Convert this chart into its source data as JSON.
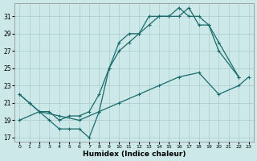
{
  "xlabel": "Humidex (Indice chaleur)",
  "bg_color": "#cce8e8",
  "grid_color": "#aacccc",
  "line_color": "#1a6b6b",
  "xlim": [
    -0.5,
    23.5
  ],
  "ylim": [
    16.5,
    32.5
  ],
  "xticks": [
    0,
    1,
    2,
    3,
    4,
    5,
    6,
    7,
    8,
    9,
    10,
    11,
    12,
    13,
    14,
    15,
    16,
    17,
    18,
    19,
    20,
    21,
    22,
    23
  ],
  "yticks": [
    17,
    19,
    21,
    23,
    25,
    27,
    29,
    31
  ],
  "line1_x": [
    0,
    1,
    2,
    3,
    4,
    5,
    6,
    7,
    8,
    9,
    10,
    11,
    12,
    13,
    14,
    15,
    16,
    17,
    18,
    19,
    20,
    22
  ],
  "line1_y": [
    22,
    21,
    20,
    19,
    18,
    18,
    18,
    17,
    20,
    25,
    28,
    29,
    29,
    31,
    31,
    31,
    32,
    31,
    31,
    30,
    27,
    24
  ],
  "line2_x": [
    0,
    1,
    2,
    3,
    4,
    5,
    6,
    7,
    8,
    9,
    10,
    11,
    12,
    13,
    14,
    15,
    16,
    17,
    18,
    19,
    20,
    22
  ],
  "line2_y": [
    22,
    21,
    20,
    20,
    19,
    19.5,
    19.5,
    20,
    22,
    25,
    27,
    28,
    29,
    30,
    31,
    31,
    31,
    32,
    30,
    30,
    28,
    24
  ],
  "line3_x": [
    0,
    2,
    4,
    6,
    8,
    10,
    12,
    14,
    16,
    18,
    20,
    22,
    23
  ],
  "line3_y": [
    19,
    20,
    19.5,
    19,
    20,
    21,
    22,
    23,
    24,
    24.5,
    22,
    23,
    24
  ]
}
